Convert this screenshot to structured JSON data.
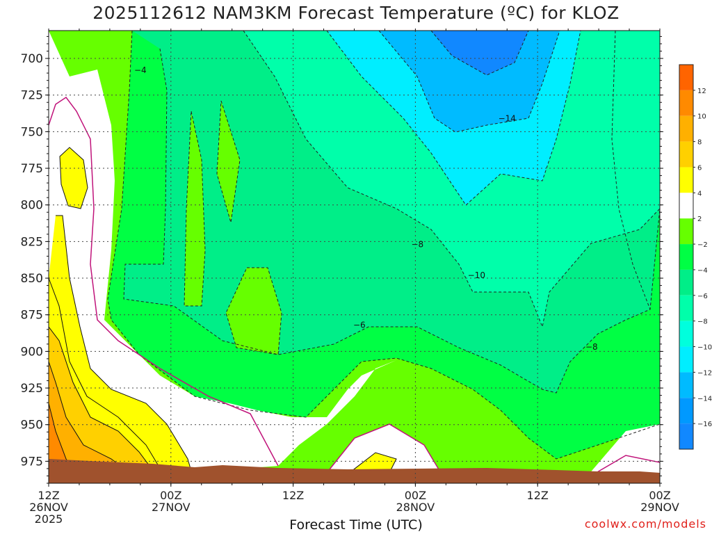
{
  "chart_data": {
    "type": "heatmap",
    "title": "2025112612 NAM3KM Forecast Temperature (ºC) for KLOZ",
    "xlabel": "Forecast Time (UTC)",
    "ylabel": "",
    "x_ticks": [
      {
        "hour": 0,
        "lines": [
          "12Z",
          "26NOV",
          "2025"
        ]
      },
      {
        "hour": 12,
        "lines": [
          "00Z",
          "27NOV"
        ]
      },
      {
        "hour": 24,
        "lines": [
          "12Z"
        ]
      },
      {
        "hour": 36,
        "lines": [
          "00Z",
          "28NOV"
        ]
      },
      {
        "hour": 48,
        "lines": [
          "12Z"
        ]
      },
      {
        "hour": 60,
        "lines": [
          "00Z",
          "29NOV"
        ]
      }
    ],
    "xlim": [
      0,
      60
    ],
    "y_ticks": [
      700,
      725,
      750,
      775,
      800,
      825,
      850,
      875,
      900,
      925,
      950,
      975
    ],
    "ylim": [
      990,
      681
    ],
    "grid": true,
    "colorbar": {
      "labels": [
        "12",
        "10",
        "8",
        "6",
        "4",
        "2",
        "−2",
        "−4",
        "−6",
        "−8",
        "−10",
        "−12",
        "−14",
        "−16"
      ],
      "colors": [
        "#ff6400",
        "#ff8a00",
        "#ffb000",
        "#ffd000",
        "#ffff00",
        "#ffffff",
        "#66ff00",
        "#00ff44",
        "#00ee88",
        "#00ffaa",
        "#00ffdd",
        "#00eeff",
        "#00bbff",
        "#0099ff",
        "#1188ff"
      ]
    },
    "contour_labels": [
      {
        "text": "−4",
        "hour": 9.0,
        "pressure": 708
      },
      {
        "text": "−14",
        "hour": 45.0,
        "pressure": 741
      },
      {
        "text": "−8",
        "hour": 36.2,
        "pressure": 827
      },
      {
        "text": "−10",
        "hour": 42.0,
        "pressure": 848
      },
      {
        "text": "−6",
        "hour": 30.5,
        "pressure": 882
      },
      {
        "text": "−8",
        "hour": 53.3,
        "pressure": 897
      }
    ],
    "credit": "coolwx.com/models"
  }
}
